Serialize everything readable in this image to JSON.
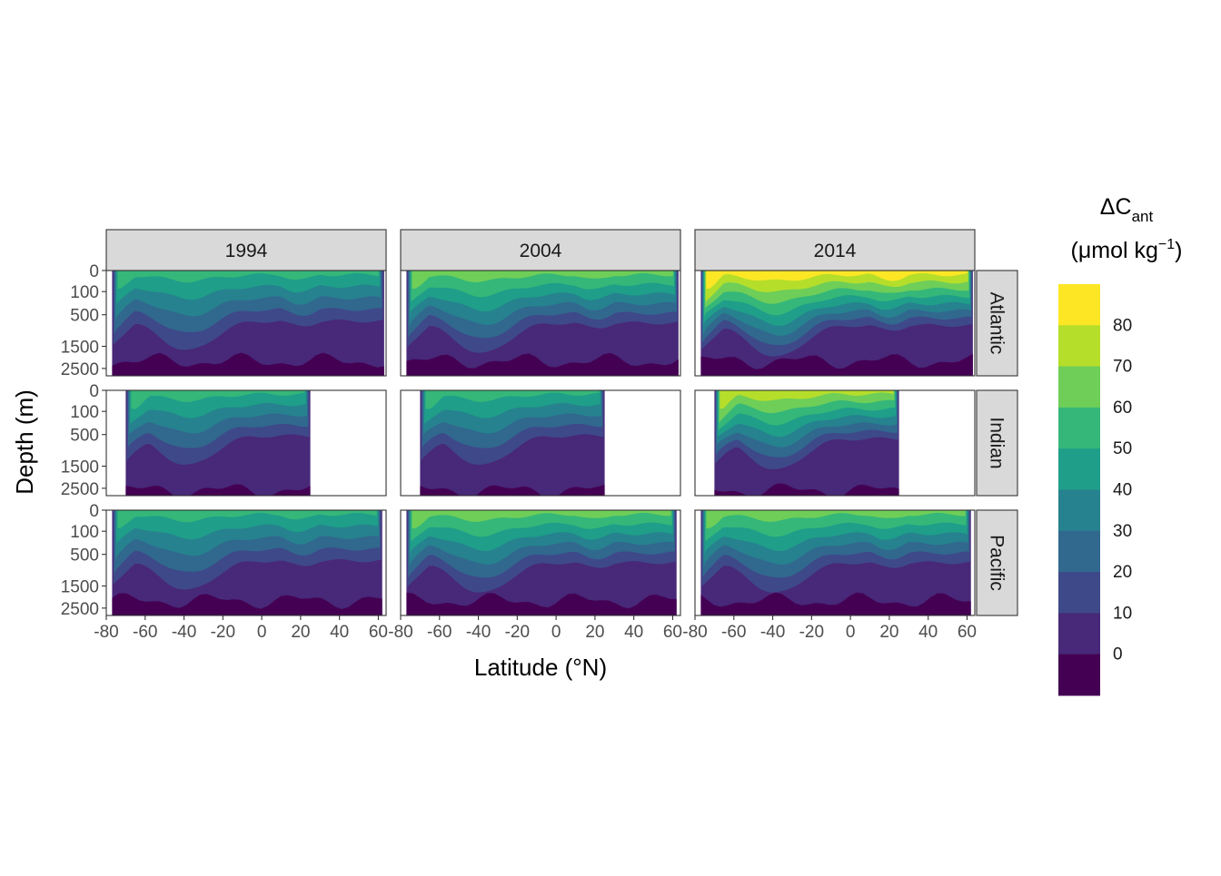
{
  "chart_data": {
    "type": "heatmap",
    "description_note": "",
    "columns": [
      "1994",
      "2004",
      "2014"
    ],
    "rows": [
      "Atlantic",
      "Indian",
      "Pacific"
    ],
    "xlabel": "Latitude (°N)",
    "ylabel": "Depth (m)",
    "x_ticks": [
      -80,
      -60,
      -40,
      -20,
      0,
      20,
      40,
      60
    ],
    "x_tick_labels": [
      "-80",
      "-60",
      "-40",
      "-20",
      "0",
      "20",
      "40",
      "60"
    ],
    "xlim": [
      -80,
      64
    ],
    "y_ticks": [
      0,
      100,
      500,
      1500,
      2500
    ],
    "y_tick_labels": [
      "0",
      "100",
      "500",
      "1500",
      "2500"
    ],
    "y_scale": "reversed, compressed near surface",
    "legend": {
      "title_main": "ΔC",
      "title_sub": "ant",
      "title_unit": "(μmol kg",
      "title_sup": "−1",
      "title_close": ")",
      "placement": "right",
      "breaks": [
        "80",
        "70",
        "60",
        "50",
        "40",
        "30",
        "20",
        "10",
        "0"
      ],
      "bin_colors": [
        "#fde725",
        "#b5de2b",
        "#6ece58",
        "#35b779",
        "#1f9e89",
        "#26828e",
        "#31688e",
        "#3e4989",
        "#482878",
        "#440154"
      ]
    },
    "basins": {
      "Atlantic": {
        "lat_range": [
          -77,
          63
        ],
        "max_surface_by_year": {
          "1994": 55,
          "2004": 65,
          "2014": 85
        }
      },
      "Indian": {
        "lat_range": [
          -70,
          25
        ],
        "max_surface_by_year": {
          "1994": 50,
          "2004": 55,
          "2014": 70
        }
      },
      "Pacific": {
        "lat_range": [
          -77,
          62
        ],
        "max_surface_by_year": {
          "1994": 50,
          "2004": 60,
          "2014": 65
        }
      }
    }
  }
}
